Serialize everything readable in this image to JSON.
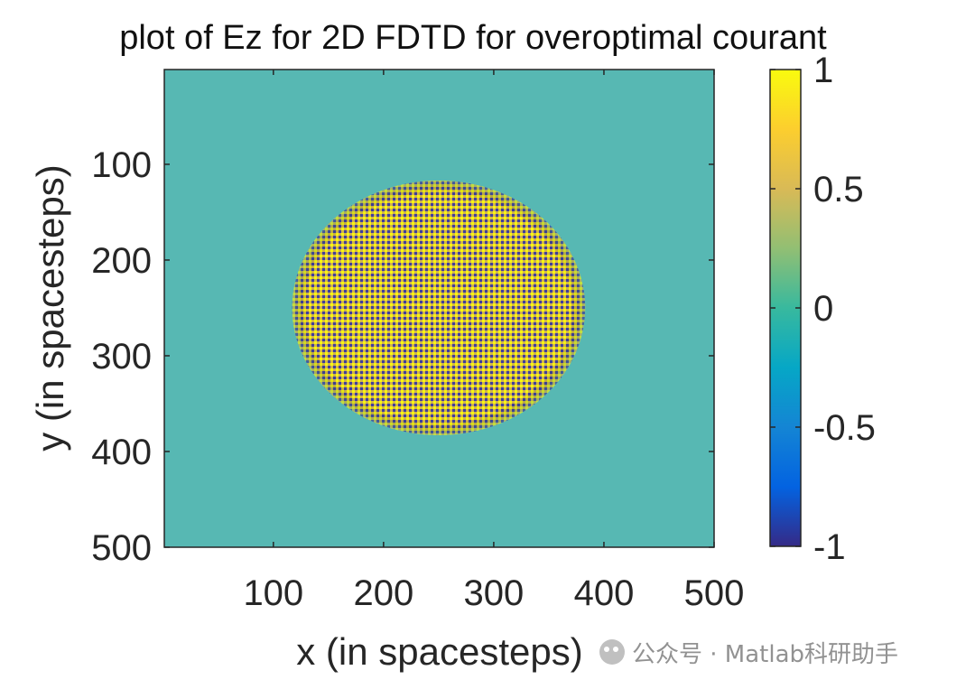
{
  "chart_data": {
    "type": "heatmap",
    "title": "plot of Ez for 2D FDTD for overoptimal courant",
    "xlabel": "x (in spacesteps)",
    "ylabel": "y (in spacesteps)",
    "xlim": [
      1,
      500
    ],
    "ylim": [
      1,
      500
    ],
    "y_reversed": true,
    "x_ticks": [
      100,
      200,
      300,
      400,
      500
    ],
    "y_ticks": [
      100,
      200,
      300,
      400,
      500
    ],
    "colorbar": {
      "colormap": "parula",
      "clim": [
        -1,
        1
      ],
      "ticks": [
        1,
        0.5,
        0,
        -0.5,
        -1
      ],
      "tick_labels": [
        "1",
        "0.5",
        "0",
        "-0.5",
        "-1"
      ]
    },
    "background_value": 0,
    "region": {
      "shape": "circle",
      "center": [
        250,
        250
      ],
      "radius": 133,
      "pattern": "checkerboard",
      "values": [
        1,
        -1
      ],
      "mean_value": 0.55
    }
  },
  "watermark": {
    "icon": "wechat-icon",
    "text": "公众号 · Matlab科研助手"
  }
}
